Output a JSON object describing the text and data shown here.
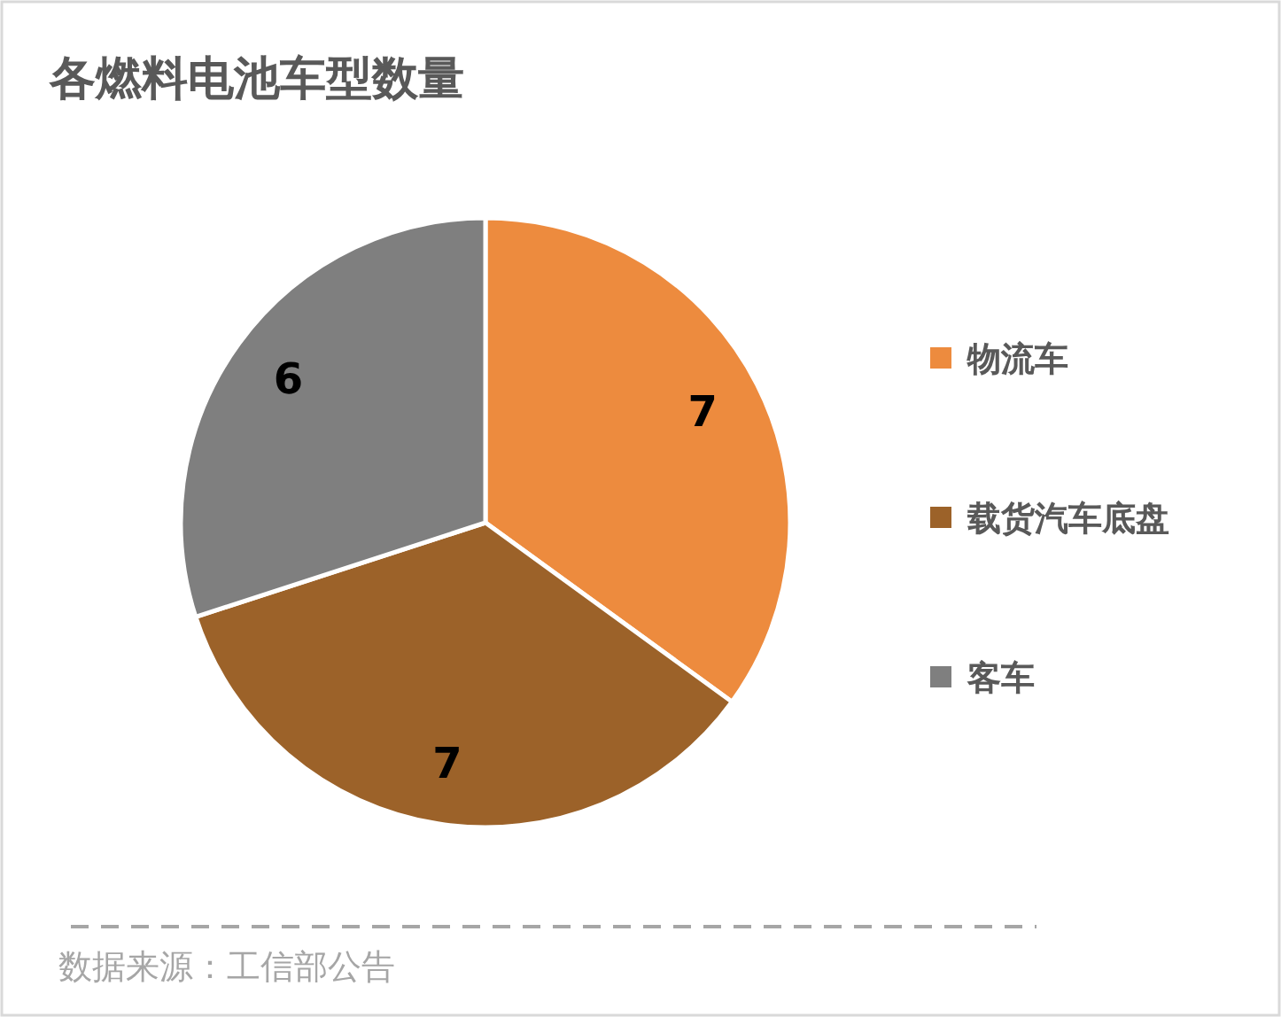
{
  "chart_data": {
    "type": "pie",
    "title": "各燃料电池车型数量",
    "categories": [
      "物流车",
      "载货汽车底盘",
      "客车"
    ],
    "values": [
      7,
      7,
      6
    ],
    "colors": [
      "#ed8b3e",
      "#9c6229",
      "#7f7f7f"
    ],
    "data_labels": true,
    "legend": "right",
    "annotations": [
      "数据来源：工信部公告"
    ]
  }
}
